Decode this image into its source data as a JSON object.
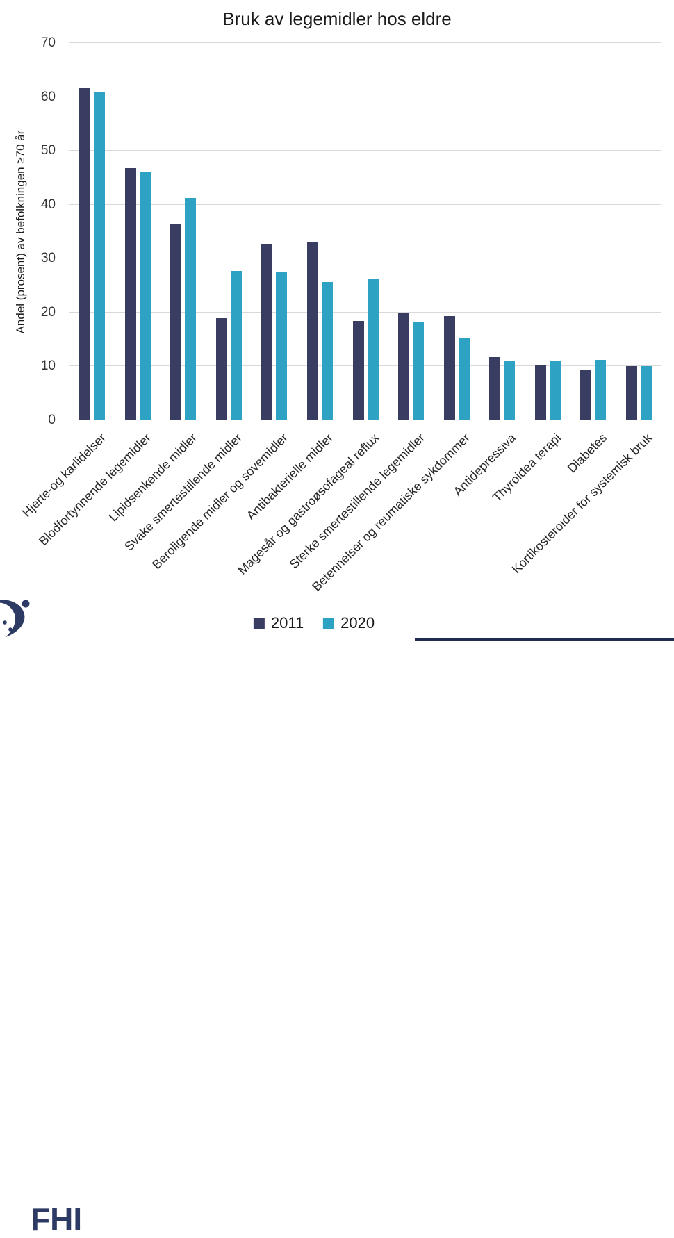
{
  "title": "Bruk av legemidler hos eldre",
  "logo": {
    "text": "FHI"
  },
  "colors": {
    "navy": "#393d62",
    "teal": "#2da2c3",
    "grid": "#d9d9d9",
    "logo_navy": "#2d3a64",
    "bottom_rule": "#202b54"
  },
  "chart_data": {
    "type": "bar",
    "title": "Bruk av legemidler hos eldre",
    "xlabel": "",
    "ylabel": "Andel (prosent) av befolkningen ≥70 år",
    "ylim": [
      0,
      70
    ],
    "yticks": [
      0,
      10,
      20,
      30,
      40,
      50,
      60,
      70
    ],
    "grid": true,
    "legend_position": "bottom",
    "categories": [
      "Hjerte-og karlidelser",
      "Blodfortynnende legemidler",
      "Lipidsenkende midler",
      "Svake smertestillende midler",
      "Beroligende midler og sovemidler",
      "Antibakterielle midler",
      "Magesår og gastroøsofageal reflux",
      "Sterke smertestillende legemidler",
      "Betennelser og reumatiske sykdommer",
      "Antidepressiva",
      "Thyroidea terapi",
      "Diabetes",
      "Kortikosteroider for systemisk bruk"
    ],
    "series": [
      {
        "name": "2011",
        "color": "#393d62",
        "values": [
          61.8,
          46.8,
          36.3,
          19.0,
          32.8,
          33.0,
          18.5,
          19.9,
          19.4,
          11.7,
          10.2,
          9.3,
          10.0
        ]
      },
      {
        "name": "2020",
        "color": "#2da2c3",
        "values": [
          60.8,
          46.2,
          41.3,
          27.7,
          27.4,
          25.6,
          26.3,
          18.3,
          15.2,
          11.0,
          10.9,
          11.2,
          10.1
        ]
      }
    ]
  }
}
